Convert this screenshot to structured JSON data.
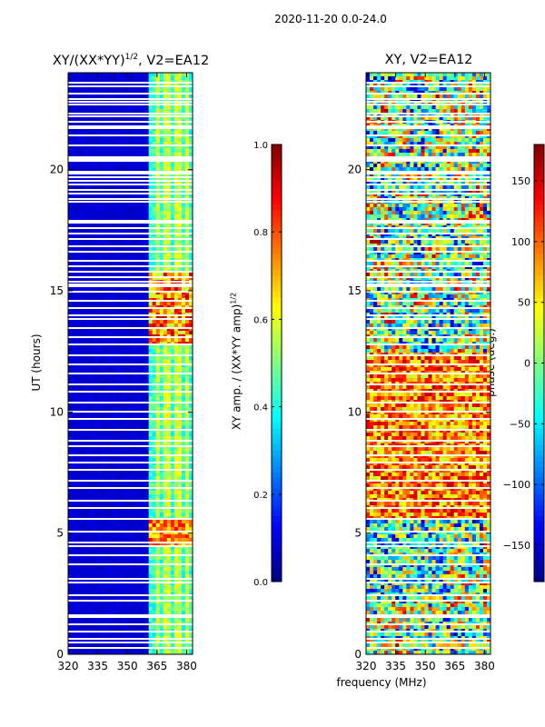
{
  "suptitle": "2020-11-20 0.0-24.0",
  "xlabel": "frequency (MHz)",
  "chart_data": [
    {
      "type": "heatmap",
      "title": "XY/(XX*YY)^1/2, V2=EA12",
      "title_main": "XY/(XX*YY)",
      "title_exp": "1/2",
      "title_rest": ", V2=EA12",
      "ylabel": "UT (hours)",
      "xlabel": "",
      "x_ticks": [
        "320",
        "335",
        "350",
        "365",
        "380"
      ],
      "x_tick_values": [
        320,
        335,
        350,
        365,
        380
      ],
      "y_ticks": [
        "0",
        "5",
        "10",
        "15",
        "20"
      ],
      "y_tick_values": [
        0,
        5,
        10,
        15,
        20
      ],
      "xlim": [
        320,
        383
      ],
      "ylim": [
        0,
        24
      ],
      "colorbar": {
        "label_main": "XY amp. / (XX*YY amp)",
        "label_exp": "1/2",
        "ticks": [
          "0.0",
          "0.2",
          "0.4",
          "0.6",
          "0.8",
          "1.0"
        ],
        "tick_values": [
          0.0,
          0.2,
          0.4,
          0.6,
          0.8,
          1.0
        ],
        "range": [
          0,
          1
        ]
      }
    },
    {
      "type": "heatmap",
      "title": "XY, V2=EA12",
      "ylabel": "",
      "xlabel": "frequency (MHz)",
      "x_ticks": [
        "320",
        "335",
        "350",
        "365",
        "380"
      ],
      "x_tick_values": [
        320,
        335,
        350,
        365,
        380
      ],
      "y_ticks": [
        "0",
        "5",
        "10",
        "15",
        "20"
      ],
      "y_tick_values": [
        0,
        5,
        10,
        15,
        20
      ],
      "xlim": [
        320,
        383
      ],
      "ylim": [
        0,
        24
      ],
      "colorbar": {
        "label": "phase (deg.)",
        "ticks": [
          "150",
          "100",
          "50",
          "0",
          "−50",
          "−100",
          "−150"
        ],
        "tick_values": [
          150,
          100,
          50,
          0,
          -50,
          -100,
          -150
        ],
        "range": [
          -180,
          180
        ]
      }
    }
  ]
}
